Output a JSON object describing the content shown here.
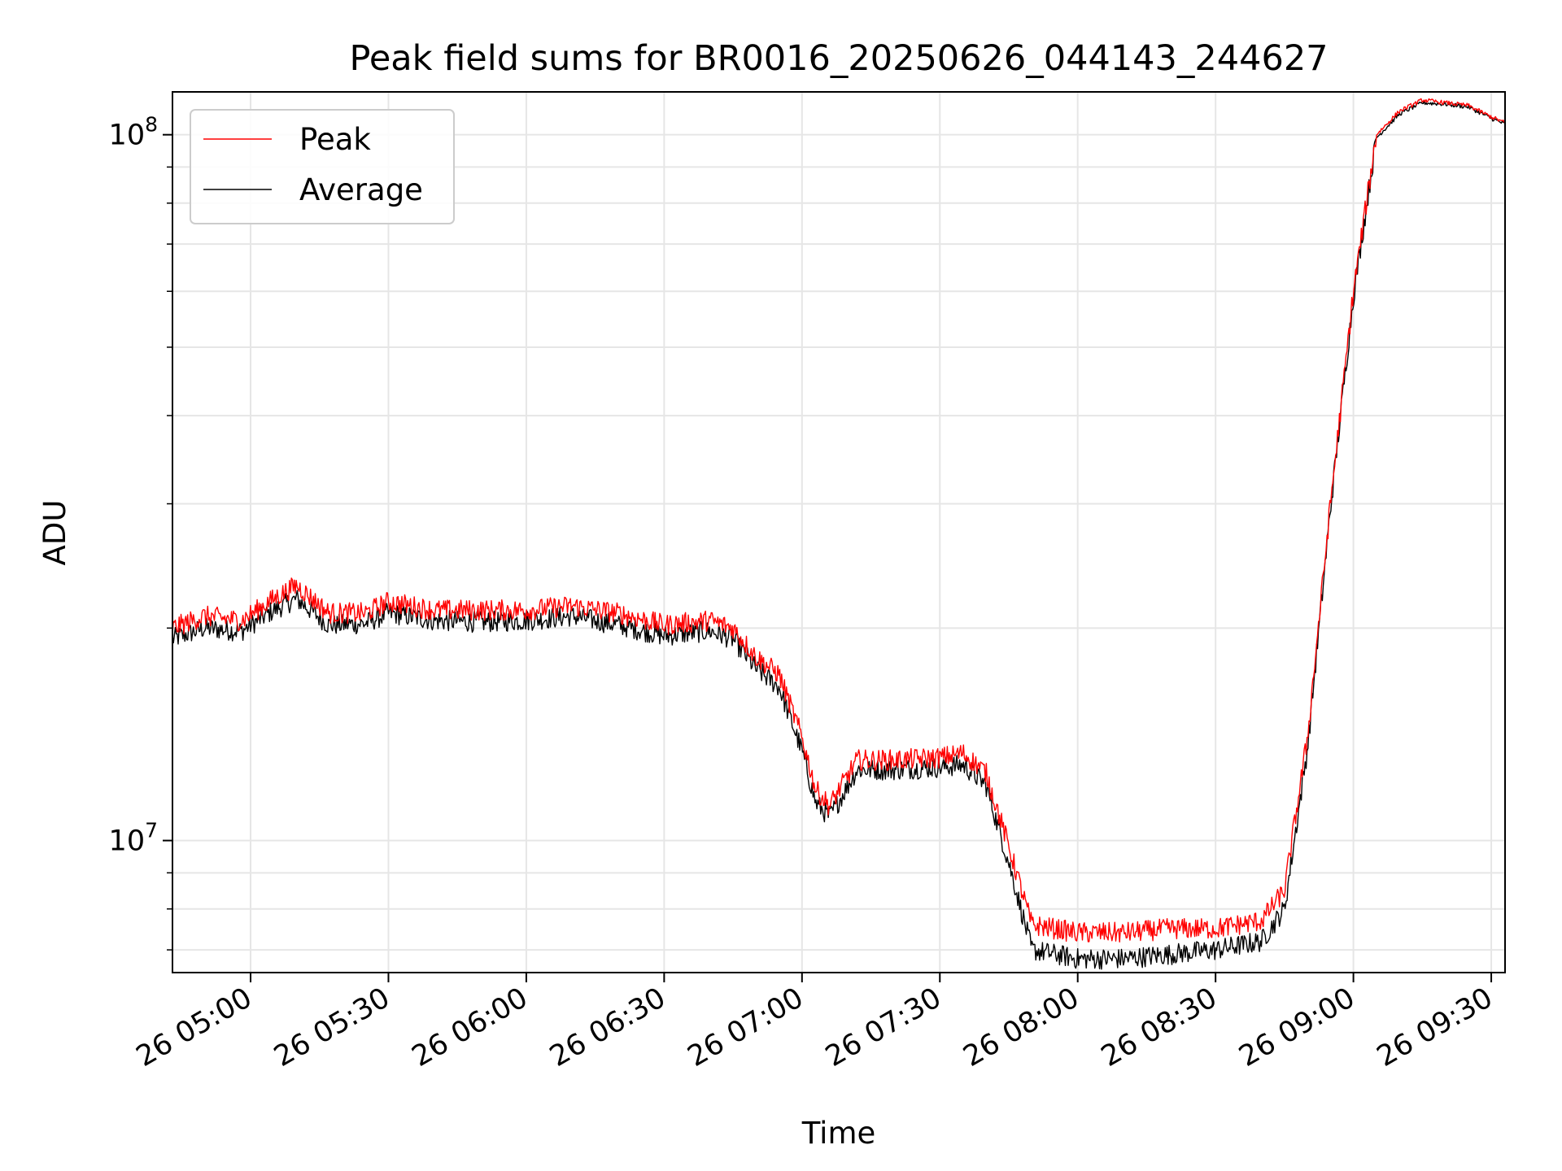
{
  "chart_data": {
    "type": "line",
    "title": "Peak field sums for BR0016_20250626_044143_244627",
    "xlabel": "Time",
    "ylabel": "ADU",
    "yscale": "log",
    "ylim": [
      6500000,
      115000000
    ],
    "xlim": [
      "2025-06-26 04:43",
      "2025-06-26 09:33"
    ],
    "x_ticks": [
      "26 05:00",
      "26 05:30",
      "26 06:00",
      "26 06:30",
      "26 07:00",
      "26 07:30",
      "26 08:00",
      "26 08:30",
      "26 09:00",
      "26 09:30"
    ],
    "y_ticks": [
      {
        "base": "10",
        "exp": "7",
        "value": 10000000
      },
      {
        "base": "10",
        "exp": "8",
        "value": 100000000
      }
    ],
    "grid": true,
    "legend": {
      "placement": "upper-left",
      "entries": [
        "Peak",
        "Average"
      ]
    },
    "colors": {
      "Peak": "#ff0000",
      "Average": "#000000",
      "grid": "#e6e6e6"
    },
    "x": [
      "2025-06-26 04:43",
      "2025-06-26 04:50",
      "2025-06-26 04:58",
      "2025-06-26 05:05",
      "2025-06-26 05:10",
      "2025-06-26 05:17",
      "2025-06-26 05:25",
      "2025-06-26 05:30",
      "2025-06-26 05:40",
      "2025-06-26 05:50",
      "2025-06-26 06:00",
      "2025-06-26 06:10",
      "2025-06-26 06:20",
      "2025-06-26 06:30",
      "2025-06-26 06:40",
      "2025-06-26 06:45",
      "2025-06-26 06:50",
      "2025-06-26 06:55",
      "2025-06-26 07:00",
      "2025-06-26 07:03",
      "2025-06-26 07:06",
      "2025-06-26 07:12",
      "2025-06-26 07:20",
      "2025-06-26 07:30",
      "2025-06-26 07:35",
      "2025-06-26 07:40",
      "2025-06-26 07:45",
      "2025-06-26 07:50",
      "2025-06-26 08:00",
      "2025-06-26 08:10",
      "2025-06-26 08:20",
      "2025-06-26 08:30",
      "2025-06-26 08:40",
      "2025-06-26 08:45",
      "2025-06-26 08:50",
      "2025-06-26 08:55",
      "2025-06-26 09:00",
      "2025-06-26 09:05",
      "2025-06-26 09:10",
      "2025-06-26 09:15",
      "2025-06-26 09:20",
      "2025-06-26 09:25",
      "2025-06-26 09:30",
      "2025-06-26 09:33"
    ],
    "series": [
      {
        "name": "Peak",
        "values": [
          20000000,
          20800000,
          20500000,
          22000000,
          23000000,
          21000000,
          21000000,
          21800000,
          21200000,
          21200000,
          21200000,
          21500000,
          21000000,
          20200000,
          20500000,
          20000000,
          18200000,
          17200000,
          14000000,
          11800000,
          11200000,
          13000000,
          13000000,
          13100000,
          13300000,
          12500000,
          9800000,
          7600000,
          7400000,
          7400000,
          7500000,
          7500000,
          7700000,
          8500000,
          14000000,
          30000000,
          60000000,
          100000000,
          108000000,
          112000000,
          111000000,
          110000000,
          106000000,
          104000000
        ]
      },
      {
        "name": "Average",
        "values": [
          19300000,
          20000000,
          19800000,
          21200000,
          22000000,
          20200000,
          20300000,
          21000000,
          20500000,
          20400000,
          20500000,
          20800000,
          20200000,
          19500000,
          19800000,
          19300000,
          17500000,
          16500000,
          13400000,
          11300000,
          10800000,
          12600000,
          12600000,
          12700000,
          12800000,
          12000000,
          9300000,
          7000000,
          6800000,
          6800000,
          6900000,
          7000000,
          7200000,
          8000000,
          13500000,
          29500000,
          59000000,
          99000000,
          107000000,
          111000000,
          110500000,
          109500000,
          105500000,
          103500000
        ]
      }
    ]
  }
}
